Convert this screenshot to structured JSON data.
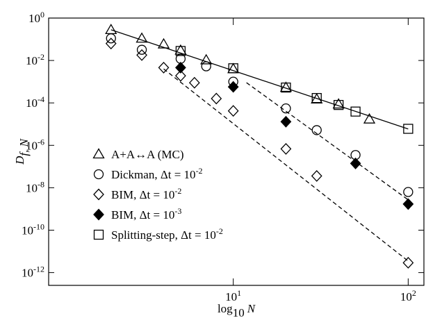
{
  "chart_data": {
    "type": "scatter",
    "x_label": [
      "log",
      "10",
      "N"
    ],
    "y_label": [
      "D",
      "f, N"
    ],
    "xscale": "log",
    "yscale": "log",
    "xlim": [
      0.88,
      123
    ],
    "ylim": [
      2.5e-13,
      1
    ],
    "xticks": [
      {
        "value": 10,
        "label": "10^1"
      },
      {
        "value": 100,
        "label": "10^2"
      }
    ],
    "yticks": [
      {
        "value": 1,
        "label": "10^0"
      },
      {
        "value": 0.01,
        "label": "10^-2"
      },
      {
        "value": 0.0001,
        "label": "10^-4"
      },
      {
        "value": 1e-06,
        "label": "10^-6"
      },
      {
        "value": 1e-08,
        "label": "10^-8"
      },
      {
        "value": 1e-10,
        "label": "10^-10"
      },
      {
        "value": 1e-12,
        "label": "10^-12"
      }
    ],
    "legend": "lower left",
    "series": [
      {
        "name": "A+A↔A (MC)",
        "marker": "triangle",
        "filled": false,
        "color": "#000000",
        "x": [
          2,
          3,
          4,
          5,
          7,
          10,
          20,
          30,
          40,
          60
        ],
        "values": [
          0.28,
          0.11,
          0.059,
          0.03,
          0.0105,
          0.004,
          0.00053,
          0.00015,
          8.7e-05,
          1.7e-05
        ]
      },
      {
        "name": "Dickman, Δt = 10^-2",
        "marker": "circle",
        "filled": false,
        "color": "#000000",
        "x": [
          2,
          3,
          5,
          7,
          10,
          20,
          30,
          50,
          100
        ],
        "values": [
          0.11,
          0.032,
          0.012,
          0.0053,
          0.001,
          5.5e-05,
          5.2e-06,
          3.5e-07,
          6.3e-09
        ]
      },
      {
        "name": "BIM, Δt = 10^-2",
        "marker": "diamond",
        "filled": false,
        "color": "#000000",
        "x": [
          2,
          3,
          4,
          5,
          6,
          8,
          10,
          20,
          30,
          100
        ],
        "values": [
          0.063,
          0.018,
          0.0046,
          0.0019,
          0.00089,
          0.00016,
          4.2e-05,
          6.8e-07,
          3.6e-08,
          2.9e-12
        ]
      },
      {
        "name": "BIM, Δt = 10^-3",
        "marker": "diamond",
        "filled": true,
        "color": "#000000",
        "x": [
          5,
          10,
          20,
          50,
          100
        ],
        "values": [
          0.0046,
          0.00057,
          1.3e-05,
          1.4e-07,
          1.7e-09
        ]
      },
      {
        "name": "Splitting-step, Δt = 10^-2",
        "marker": "square",
        "filled": false,
        "color": "#000000",
        "x": [
          5,
          10,
          20,
          30,
          40,
          50,
          100
        ],
        "values": [
          0.028,
          0.0043,
          0.00053,
          0.00017,
          8e-05,
          3.9e-05,
          6e-06
        ]
      }
    ],
    "fit_lines": [
      {
        "x": [
          2,
          100
        ],
        "values": [
          0.28,
          5.9e-06
        ],
        "dashed": false
      },
      {
        "x": [
          4,
          100
        ],
        "values": [
          0.004,
          3.5e-12
        ],
        "dashed": true
      },
      {
        "x": [
          11.9,
          100
        ],
        "values": [
          0.0009,
          2.7e-09
        ],
        "dashed": true
      }
    ]
  }
}
